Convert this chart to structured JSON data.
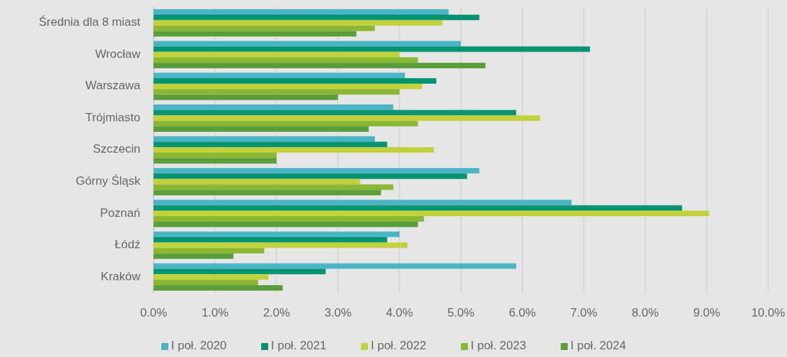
{
  "chart_data": {
    "type": "bar",
    "orientation": "horizontal",
    "categories": [
      "Średnia dla 8 miast",
      "Wrocław",
      "Warszawa",
      "Trójmiasto",
      "Szczecin",
      "Górny Śląsk",
      "Poznań",
      "Łódź",
      "Kraków"
    ],
    "series": [
      {
        "name": "I poł. 2020",
        "color": "#4bb5c6",
        "values": [
          4.8,
          5.0,
          4.09,
          3.9,
          3.6,
          5.3,
          6.8,
          4.0,
          5.9
        ]
      },
      {
        "name": "I poł. 2021",
        "color": "#009473",
        "values": [
          5.3,
          7.1,
          4.6,
          5.9,
          3.8,
          5.1,
          8.6,
          3.8,
          2.8
        ]
      },
      {
        "name": "I poł. 2022",
        "color": "#c3d13a",
        "values": [
          4.7,
          4.0,
          4.37,
          6.29,
          4.56,
          3.36,
          9.04,
          4.13,
          1.87
        ]
      },
      {
        "name": "I poł. 2023",
        "color": "#8ab833",
        "values": [
          3.6,
          4.3,
          4.0,
          4.3,
          2.0,
          3.9,
          4.4,
          1.8,
          1.7
        ]
      },
      {
        "name": "I poł. 2024",
        "color": "#5a9e3a",
        "values": [
          3.3,
          5.4,
          3.0,
          3.5,
          2.0,
          3.7,
          4.3,
          1.3,
          2.1
        ]
      }
    ],
    "xlim": [
      0,
      10
    ],
    "xticks": [
      {
        "value": 0,
        "label": "0.0%"
      },
      {
        "value": 1,
        "label": "1.0%"
      },
      {
        "value": 2,
        "label": "2.0%"
      },
      {
        "value": 3,
        "label": "3.0%"
      },
      {
        "value": 4,
        "label": "4.0%"
      },
      {
        "value": 5,
        "label": "5.0%"
      },
      {
        "value": 6,
        "label": "6.0%"
      },
      {
        "value": 7,
        "label": "7.0%"
      },
      {
        "value": 8,
        "label": "8.0%"
      },
      {
        "value": 9,
        "label": "9.0%"
      },
      {
        "value": 10,
        "label": "10.0%"
      }
    ],
    "grid": "x",
    "legend": "bottom",
    "marker": "square"
  }
}
